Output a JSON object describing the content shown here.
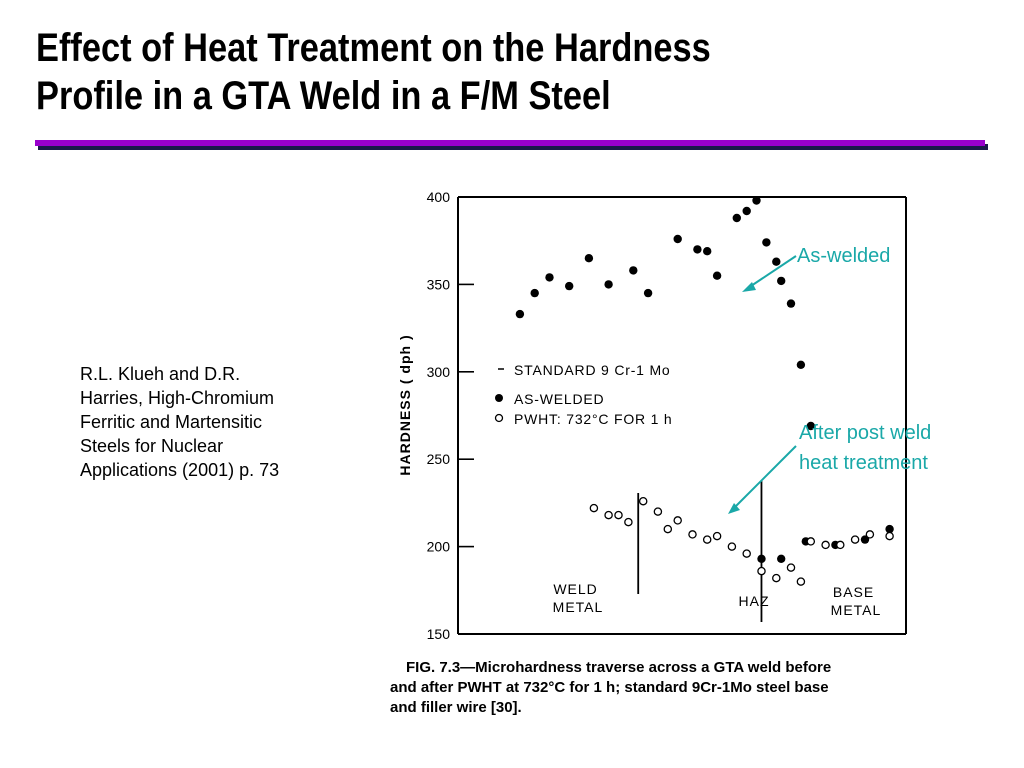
{
  "slide": {
    "title_line1": "Effect of Heat Treatment on the Hardness",
    "title_line2": "Profile in a GTA Weld in a F/M Steel",
    "rule_color": "#9900cc",
    "accent_color": "#1aa8a8",
    "citation_lines": [
      "R.L. Klueh and D.R.",
      "Harries, High-Chromium",
      "Ferritic and Martensitic",
      "Steels for Nuclear",
      "Applications (2001) p. 73"
    ],
    "annotation_as_welded": "As-welded",
    "annotation_pwht_line1": "After post weld",
    "annotation_pwht_line2": "heat treatment",
    "caption_lines": [
      "FIG. 7.3—Microhardness traverse across a GTA weld before",
      "and after PWHT at 732°C for 1 h; standard 9Cr-1Mo steel base",
      "and filler wire [30]."
    ]
  },
  "chart_data": {
    "type": "scatter",
    "ylabel": "HARDNESS  ( dph )",
    "xlabel": "",
    "ylim": [
      150,
      400
    ],
    "yticks": [
      150,
      200,
      250,
      300,
      350,
      400
    ],
    "x_axis_numbered": false,
    "grid": false,
    "legend": {
      "title": "STANDARD 9 Cr-1 Mo",
      "entries": [
        "AS-WELDED",
        "PWHT:  732°C  FOR  1 h"
      ],
      "placement": "middle-left"
    },
    "regions": [
      "WELD\nMETAL",
      "HAZ",
      "BASE\nMETAL"
    ],
    "series": [
      {
        "name": "AS-WELDED",
        "marker": "filled-circle",
        "points": [
          [
            0.3,
            333
          ],
          [
            0.33,
            345
          ],
          [
            0.36,
            354
          ],
          [
            0.4,
            349
          ],
          [
            0.44,
            365
          ],
          [
            0.48,
            350
          ],
          [
            0.53,
            358
          ],
          [
            0.56,
            345
          ],
          [
            0.62,
            376
          ],
          [
            0.66,
            370
          ],
          [
            0.68,
            369
          ],
          [
            0.7,
            355
          ],
          [
            0.74,
            388
          ],
          [
            0.76,
            392
          ],
          [
            0.78,
            398
          ],
          [
            0.8,
            374
          ],
          [
            0.82,
            363
          ],
          [
            0.83,
            352
          ],
          [
            0.85,
            339
          ],
          [
            0.87,
            304
          ],
          [
            0.89,
            269
          ],
          [
            0.79,
            193
          ],
          [
            0.83,
            193
          ],
          [
            0.88,
            203
          ],
          [
            0.94,
            201
          ],
          [
            1.0,
            204
          ],
          [
            1.05,
            210
          ]
        ]
      },
      {
        "name": "PWHT:  732°C  FOR  1 h",
        "marker": "open-circle",
        "points": [
          [
            0.45,
            222
          ],
          [
            0.48,
            218
          ],
          [
            0.5,
            218
          ],
          [
            0.52,
            214
          ],
          [
            0.55,
            226
          ],
          [
            0.58,
            220
          ],
          [
            0.6,
            210
          ],
          [
            0.62,
            215
          ],
          [
            0.65,
            207
          ],
          [
            0.68,
            204
          ],
          [
            0.7,
            206
          ],
          [
            0.73,
            200
          ],
          [
            0.76,
            196
          ],
          [
            0.79,
            186
          ],
          [
            0.82,
            182
          ],
          [
            0.85,
            188
          ],
          [
            0.87,
            180
          ],
          [
            0.89,
            203
          ],
          [
            0.92,
            201
          ],
          [
            0.95,
            201
          ],
          [
            0.98,
            204
          ],
          [
            1.01,
            207
          ],
          [
            1.05,
            206
          ]
        ]
      }
    ],
    "boundaries_x": [
      0.54,
      0.79
    ]
  }
}
